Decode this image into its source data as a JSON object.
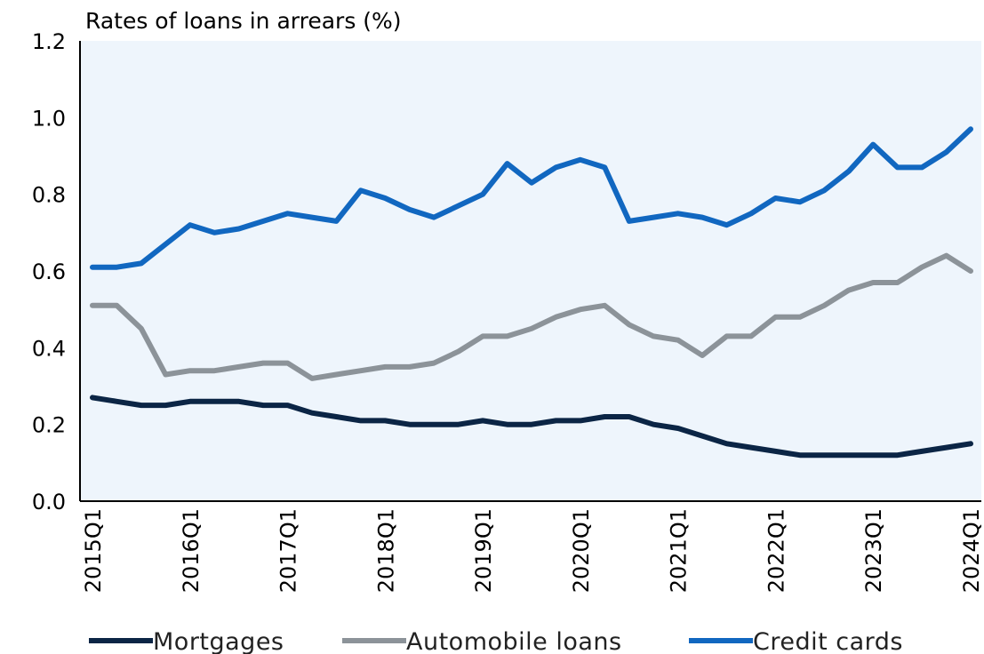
{
  "chart_data": {
    "type": "line",
    "title": "",
    "ylabel": "Rates of loans in arrears (%)",
    "xlabel": "",
    "ylim": [
      0,
      1.2
    ],
    "yticks": [
      "0.0",
      "0.2",
      "0.4",
      "0.6",
      "0.8",
      "1.0",
      "1.2"
    ],
    "xticks": [
      "2015Q1",
      "2016Q1",
      "2017Q1",
      "2018Q1",
      "2019Q1",
      "2020Q1",
      "2021Q1",
      "2022Q1",
      "2023Q1",
      "2024Q1"
    ],
    "categories": [
      "2015Q1",
      "2015Q2",
      "2015Q3",
      "2015Q4",
      "2016Q1",
      "2016Q2",
      "2016Q3",
      "2016Q4",
      "2017Q1",
      "2017Q2",
      "2017Q3",
      "2017Q4",
      "2018Q1",
      "2018Q2",
      "2018Q3",
      "2018Q4",
      "2019Q1",
      "2019Q2",
      "2019Q3",
      "2019Q4",
      "2020Q1",
      "2020Q2",
      "2020Q3",
      "2020Q4",
      "2021Q1",
      "2021Q2",
      "2021Q3",
      "2021Q4",
      "2022Q1",
      "2022Q2",
      "2022Q3",
      "2022Q4",
      "2023Q1",
      "2023Q2",
      "2023Q3",
      "2023Q4",
      "2024Q1"
    ],
    "grid": false,
    "legend_position": "bottom",
    "series": [
      {
        "name": "Mortgages",
        "color": "#0b2545",
        "values": [
          0.27,
          0.26,
          0.25,
          0.25,
          0.26,
          0.26,
          0.26,
          0.25,
          0.25,
          0.23,
          0.22,
          0.21,
          0.21,
          0.2,
          0.2,
          0.2,
          0.21,
          0.2,
          0.2,
          0.21,
          0.21,
          0.22,
          0.22,
          0.2,
          0.19,
          0.17,
          0.15,
          0.14,
          0.13,
          0.12,
          0.12,
          0.12,
          0.12,
          0.12,
          0.13,
          0.14,
          0.15
        ]
      },
      {
        "name": "Automobile loans",
        "color": "#8c9399",
        "values": [
          0.51,
          0.51,
          0.45,
          0.33,
          0.34,
          0.34,
          0.35,
          0.36,
          0.36,
          0.32,
          0.33,
          0.34,
          0.35,
          0.35,
          0.36,
          0.39,
          0.43,
          0.43,
          0.45,
          0.48,
          0.5,
          0.51,
          0.46,
          0.43,
          0.42,
          0.38,
          0.43,
          0.43,
          0.48,
          0.48,
          0.51,
          0.55,
          0.57,
          0.57,
          0.61,
          0.64,
          0.6
        ]
      },
      {
        "name": "Credit cards",
        "color": "#1167c0",
        "values": [
          0.61,
          0.61,
          0.62,
          0.67,
          0.72,
          0.7,
          0.71,
          0.73,
          0.75,
          0.74,
          0.73,
          0.81,
          0.79,
          0.76,
          0.74,
          0.77,
          0.8,
          0.88,
          0.83,
          0.87,
          0.89,
          0.87,
          0.73,
          0.74,
          0.75,
          0.74,
          0.72,
          0.75,
          0.79,
          0.78,
          0.81,
          0.86,
          0.93,
          0.87,
          0.87,
          0.91,
          0.97
        ]
      }
    ]
  }
}
